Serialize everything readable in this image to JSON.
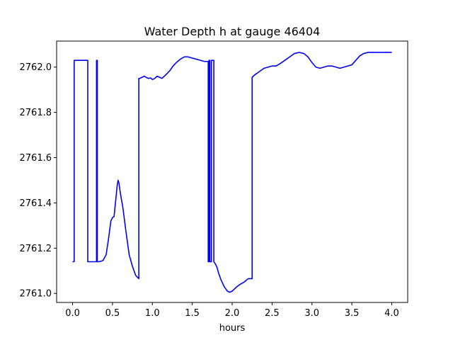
{
  "chart_data": {
    "type": "line",
    "title": "Water Depth h at gauge 46404",
    "xlabel": "hours",
    "ylabel": "",
    "xlim": [
      -0.2,
      4.2
    ],
    "ylim": [
      2760.96,
      2762.115
    ],
    "x_ticks": [
      0.0,
      0.5,
      1.0,
      1.5,
      2.0,
      2.5,
      3.0,
      3.5,
      4.0
    ],
    "x_tick_labels": [
      "0.0",
      "0.5",
      "1.0",
      "1.5",
      "2.0",
      "2.5",
      "3.0",
      "3.5",
      "4.0"
    ],
    "y_ticks": [
      2761.0,
      2761.2,
      2761.4,
      2761.6,
      2761.8,
      2762.0
    ],
    "y_tick_labels": [
      "2761.0",
      "2761.2",
      "2761.4",
      "2761.6",
      "2761.8",
      "2762.0"
    ],
    "grid": false,
    "series": [
      {
        "color": "#0000ff",
        "x": [
          0.0,
          0.02,
          0.02,
          0.19,
          0.19,
          0.3,
          0.3,
          0.31,
          0.31,
          0.33,
          0.38,
          0.42,
          0.45,
          0.48,
          0.5,
          0.52,
          0.54,
          0.56,
          0.57,
          0.58,
          0.6,
          0.63,
          0.67,
          0.71,
          0.75,
          0.79,
          0.83,
          0.83,
          0.84,
          0.87,
          0.9,
          0.92,
          0.95,
          0.98,
          1.0,
          1.03,
          1.06,
          1.09,
          1.12,
          1.15,
          1.18,
          1.22,
          1.26,
          1.3,
          1.35,
          1.4,
          1.45,
          1.5,
          1.55,
          1.6,
          1.65,
          1.7,
          1.7,
          1.71,
          1.71,
          1.72,
          1.72,
          1.74,
          1.74,
          1.77,
          1.77,
          1.79,
          1.81,
          1.83,
          1.86,
          1.9,
          1.94,
          1.97,
          2.0,
          2.03,
          2.06,
          2.1,
          2.15,
          2.2,
          2.25,
          2.25,
          2.28,
          2.32,
          2.36,
          2.4,
          2.45,
          2.5,
          2.55,
          2.6,
          2.66,
          2.72,
          2.78,
          2.84,
          2.9,
          2.95,
          3.0,
          3.05,
          3.1,
          3.15,
          3.2,
          3.25,
          3.3,
          3.35,
          3.4,
          3.5,
          3.55,
          3.6,
          3.65,
          3.7,
          3.75,
          3.8,
          3.85,
          3.9,
          3.95,
          4.0
        ],
        "y": [
          2761.14,
          2761.14,
          2762.03,
          2762.03,
          2761.14,
          2761.14,
          2762.03,
          2762.03,
          2761.14,
          2761.14,
          2761.145,
          2761.17,
          2761.24,
          2761.32,
          2761.335,
          2761.34,
          2761.41,
          2761.48,
          2761.5,
          2761.49,
          2761.44,
          2761.38,
          2761.27,
          2761.17,
          2761.12,
          2761.08,
          2761.065,
          2761.95,
          2761.95,
          2761.955,
          2761.96,
          2761.955,
          2761.95,
          2761.952,
          2761.945,
          2761.95,
          2761.96,
          2761.955,
          2761.95,
          2761.96,
          2761.97,
          2761.985,
          2762.005,
          2762.02,
          2762.035,
          2762.045,
          2762.045,
          2762.04,
          2762.035,
          2762.03,
          2762.025,
          2762.025,
          2761.14,
          2761.14,
          2762.03,
          2762.03,
          2761.14,
          2761.14,
          2762.03,
          2762.03,
          2761.14,
          2761.13,
          2761.115,
          2761.09,
          2761.06,
          2761.03,
          2761.01,
          2761.005,
          2761.01,
          2761.02,
          2761.03,
          2761.04,
          2761.05,
          2761.065,
          2761.065,
          2761.955,
          2761.965,
          2761.975,
          2761.985,
          2761.995,
          2762.0,
          2762.005,
          2762.005,
          2762.015,
          2762.03,
          2762.045,
          2762.06,
          2762.065,
          2762.06,
          2762.045,
          2762.02,
          2762.0,
          2761.995,
          2762.0,
          2762.005,
          2762.005,
          2762.0,
          2761.995,
          2762.0,
          2762.01,
          2762.03,
          2762.05,
          2762.06,
          2762.065,
          2762.065,
          2762.065,
          2762.065,
          2762.065,
          2762.065,
          2762.065
        ]
      }
    ]
  }
}
